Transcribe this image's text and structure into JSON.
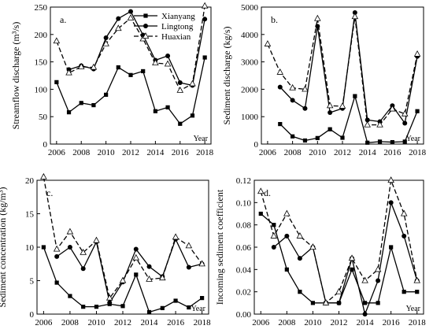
{
  "chart_data": [
    {
      "type": "line",
      "panel_label": "a.",
      "ylabel": "Streamflow discharge (m³/s)",
      "xlabel": "Year",
      "xlim": [
        2005.5,
        2018.5
      ],
      "ylim": [
        0,
        250
      ],
      "xticks": [
        2006,
        2008,
        2010,
        2012,
        2014,
        2016,
        2018
      ],
      "yticks": [
        0,
        50,
        100,
        150,
        200,
        250
      ],
      "legend": {
        "position": "top-right",
        "entries": [
          "Xianyang",
          "Lingtong",
          "Huaxian"
        ]
      },
      "series": [
        {
          "name": "Xianyang",
          "x": [
            2006,
            2007,
            2008,
            2009,
            2010,
            2011,
            2012,
            2013,
            2014,
            2015,
            2016,
            2017,
            2018
          ],
          "values": [
            113,
            58,
            75,
            71,
            90,
            140,
            126,
            133,
            60,
            67,
            37,
            52,
            158
          ]
        },
        {
          "name": "Lingtong",
          "x": [
            2007,
            2008,
            2009,
            2010,
            2011,
            2012,
            2013,
            2014,
            2015,
            2016,
            2017,
            2018
          ],
          "values": [
            136,
            143,
            137,
            194,
            229,
            242,
            199,
            153,
            161,
            112,
            107,
            228
          ]
        },
        {
          "name": "Huaxian",
          "x": [
            2006,
            2007,
            2008,
            2009,
            2010,
            2011,
            2012,
            2013,
            2014,
            2015,
            2016,
            2017,
            2018
          ],
          "values": [
            188,
            130,
            141,
            140,
            183,
            211,
            230,
            192,
            148,
            146,
            98,
            110,
            252
          ]
        }
      ]
    },
    {
      "type": "line",
      "panel_label": "b.",
      "ylabel": "Sediment discharge (kg/s)",
      "xlabel": "Year",
      "xlim": [
        2005.5,
        2018.5
      ],
      "ylim": [
        0,
        5000
      ],
      "xticks": [
        2006,
        2008,
        2010,
        2012,
        2014,
        2016,
        2018
      ],
      "yticks": [
        0,
        1000,
        2000,
        3000,
        4000,
        5000
      ],
      "series": [
        {
          "name": "Xianyang",
          "x": [
            2007,
            2008,
            2009,
            2010,
            2011,
            2012,
            2013,
            2014,
            2015,
            2016,
            2017,
            2018
          ],
          "values": [
            730,
            280,
            130,
            220,
            540,
            230,
            1750,
            50,
            90,
            70,
            90,
            1200
          ]
        },
        {
          "name": "Lingtong",
          "x": [
            2007,
            2008,
            2009,
            2010,
            2011,
            2012,
            2013,
            2014,
            2015,
            2016,
            2017,
            2018
          ],
          "values": [
            2080,
            1600,
            1300,
            4300,
            1150,
            1300,
            4800,
            880,
            820,
            1400,
            760,
            3200
          ]
        },
        {
          "name": "Huaxian",
          "x": [
            2006,
            2007,
            2008,
            2009,
            2010,
            2011,
            2012,
            2013,
            2014,
            2015,
            2016,
            2017,
            2018
          ],
          "values": [
            3650,
            2620,
            2050,
            2000,
            4580,
            1400,
            1380,
            4650,
            700,
            700,
            1280,
            1100,
            3280
          ]
        }
      ]
    },
    {
      "type": "line",
      "panel_label": "c.",
      "ylabel": "Sediment concentration (kg/m³)",
      "xlabel": "Year",
      "xlim": [
        2005.5,
        2018.5
      ],
      "ylim": [
        0,
        20
      ],
      "xticks": [
        2006,
        2008,
        2010,
        2012,
        2014,
        2016,
        2018
      ],
      "yticks": [
        0,
        5,
        10,
        15,
        20
      ],
      "series": [
        {
          "name": "Xianyang",
          "x": [
            2006,
            2007,
            2008,
            2009,
            2010,
            2011,
            2012,
            2013,
            2014,
            2015,
            2016,
            2017,
            2018
          ],
          "values": [
            10.0,
            4.7,
            2.7,
            1.1,
            1.1,
            1.5,
            1.2,
            5.9,
            0.3,
            0.9,
            2.0,
            1.0,
            2.4
          ]
        },
        {
          "name": "Lingtong",
          "x": [
            2007,
            2008,
            2009,
            2010,
            2011,
            2012,
            2013,
            2014,
            2015,
            2016,
            2017,
            2018
          ],
          "values": [
            8.6,
            10.0,
            6.8,
            10.8,
            1.7,
            4.8,
            9.7,
            7.1,
            5.6,
            11.2,
            7.0,
            7.5
          ]
        },
        {
          "name": "Huaxian",
          "x": [
            2006,
            2007,
            2008,
            2009,
            2010,
            2011,
            2012,
            2013,
            2014,
            2015,
            2016,
            2017,
            2018
          ],
          "values": [
            20.5,
            9.7,
            12.3,
            9.2,
            11.0,
            2.4,
            5.0,
            8.4,
            5.2,
            5.4,
            11.5,
            10.2,
            7.5
          ]
        }
      ]
    },
    {
      "type": "line",
      "panel_label": "d.",
      "ylabel": "Incoming sediment coefficient",
      "xlabel": "Year",
      "xlim": [
        2005.5,
        2018.5
      ],
      "ylim": [
        0,
        0.12
      ],
      "xticks": [
        2006,
        2008,
        2010,
        2012,
        2014,
        2016,
        2018
      ],
      "yticks": [
        "0.00",
        "0.02",
        "0.04",
        "0.06",
        "0.08",
        "0.10",
        "0.12"
      ],
      "series": [
        {
          "name": "Xianyang",
          "x": [
            2006,
            2007,
            2008,
            2009,
            2010,
            2011,
            2012,
            2013,
            2014,
            2015,
            2016,
            2017,
            2018
          ],
          "values": [
            0.09,
            0.08,
            0.04,
            0.02,
            0.01,
            0.01,
            0.01,
            0.04,
            0.01,
            0.01,
            0.06,
            0.02,
            0.02
          ]
        },
        {
          "name": "Lingtong",
          "x": [
            2007,
            2008,
            2009,
            2010,
            2011,
            2012,
            2013,
            2014,
            2015,
            2016,
            2017,
            2018
          ],
          "values": [
            0.06,
            0.07,
            0.05,
            0.06,
            0.01,
            0.01,
            0.05,
            0.0,
            0.03,
            0.1,
            0.07,
            0.03
          ]
        },
        {
          "name": "Huaxian",
          "x": [
            2006,
            2007,
            2008,
            2009,
            2010,
            2011,
            2012,
            2013,
            2014,
            2015,
            2016,
            2017,
            2018
          ],
          "values": [
            0.11,
            0.07,
            0.09,
            0.07,
            0.06,
            0.01,
            0.02,
            0.05,
            0.03,
            0.04,
            0.12,
            0.09,
            0.03
          ]
        }
      ]
    }
  ]
}
